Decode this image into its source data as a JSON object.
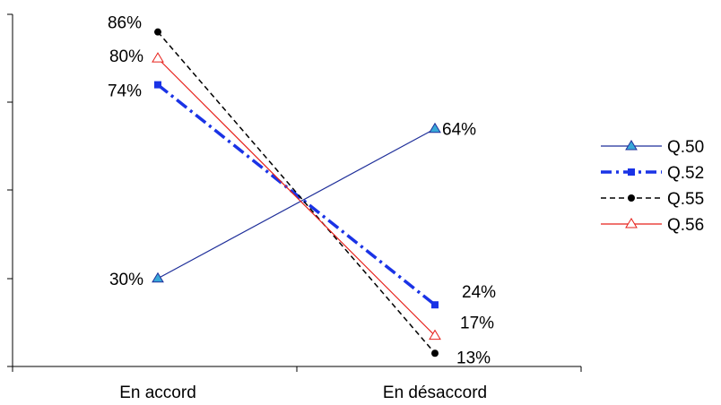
{
  "chart_data": {
    "type": "line",
    "categories": [
      "En accord",
      "En désaccord"
    ],
    "ylim": [
      10,
      90
    ],
    "grid": false,
    "legend_position": "right",
    "series": [
      {
        "name": "Q.50",
        "values": [
          30,
          64
        ],
        "value_labels": [
          "30%",
          "64%"
        ],
        "color": "#1f2f9a",
        "dash": "solid",
        "marker": "triangle",
        "marker_fill": "#38a8d8"
      },
      {
        "name": "Q.52",
        "values": [
          74,
          24
        ],
        "value_labels": [
          "74%",
          "24%"
        ],
        "color": "#1a33e6",
        "dash": "dashdot",
        "marker": "square",
        "marker_fill": "#1a33e6"
      },
      {
        "name": "Q.55",
        "values": [
          86,
          13
        ],
        "value_labels": [
          "86%",
          "13%"
        ],
        "color": "#000000",
        "dash": "dash",
        "marker": "circle",
        "marker_fill": "#000000"
      },
      {
        "name": "Q.56",
        "values": [
          80,
          17
        ],
        "value_labels": [
          "80%",
          "17%"
        ],
        "color": "#e6201a",
        "dash": "solid",
        "marker": "triangle",
        "marker_fill": "#ffffff"
      }
    ]
  }
}
